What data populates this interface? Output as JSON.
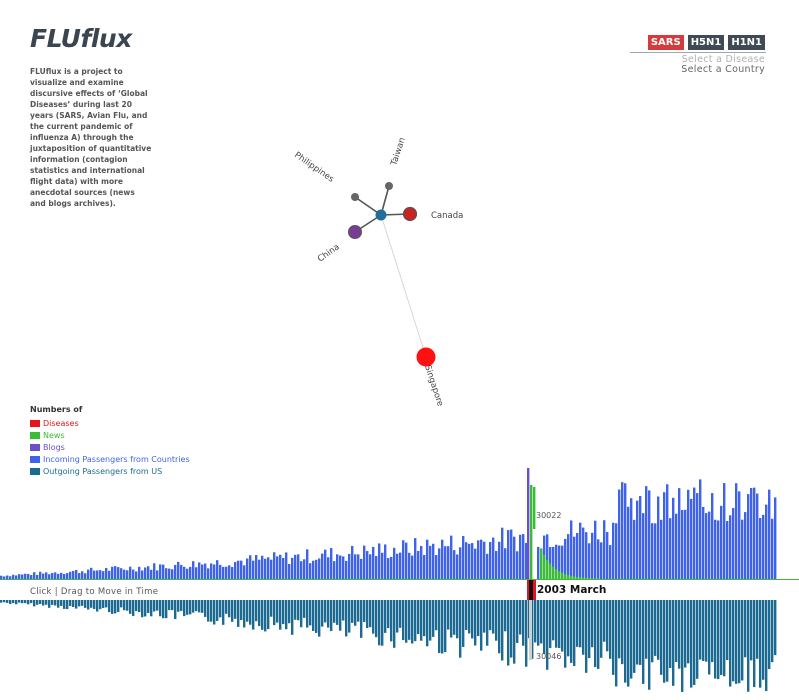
{
  "app": {
    "title": "FLUflux",
    "description": "FLUflux is a project to visualize and  examine discursive effects of ‘Global Diseases’ during last 20 years (SARS, Avian Flu, and the current pandemic of influenza A) through the juxtaposition of quantitative information (contagion statistics and international flight data) with more anecdotal sources (news and blogs archives)."
  },
  "disease_selector": {
    "tabs": [
      {
        "label": "SARS",
        "active": true
      },
      {
        "label": "H5N1",
        "active": false
      },
      {
        "label": "H1N1",
        "active": false
      }
    ],
    "select_disease": "Select a Disease",
    "select_country": "Select a Country"
  },
  "network": {
    "countries": [
      {
        "label": "Philippines",
        "color": "#666666",
        "kind": "leaf"
      },
      {
        "label": "Taiwan",
        "color": "#666666",
        "kind": "leaf"
      },
      {
        "label": "Canada",
        "color": "#cc2222",
        "kind": "leaf"
      },
      {
        "label": "China",
        "color": "#7a3d96",
        "kind": "leaf"
      },
      {
        "label": "Singapore",
        "color": "#ff1111",
        "kind": "target"
      }
    ],
    "hub_color": "#1f6e9c"
  },
  "legend": {
    "title": "Numbers of",
    "items": [
      {
        "label": "Diseases",
        "color": "#e8141b"
      },
      {
        "label": "News",
        "color": "#3cbb35"
      },
      {
        "label": "Blogs",
        "color": "#6a4fc8"
      },
      {
        "label": "Incoming Passengers from Countries",
        "color": "#3f63e8"
      },
      {
        "label": "Outgoing Passengers from US",
        "color": "#1c6a92"
      }
    ]
  },
  "timeline": {
    "hint": "Click | Drag to Move in Time",
    "current_label": "2003 March",
    "incoming_value": "30022",
    "outgoing_value": "30046",
    "slider_color": "#e8141b"
  }
}
